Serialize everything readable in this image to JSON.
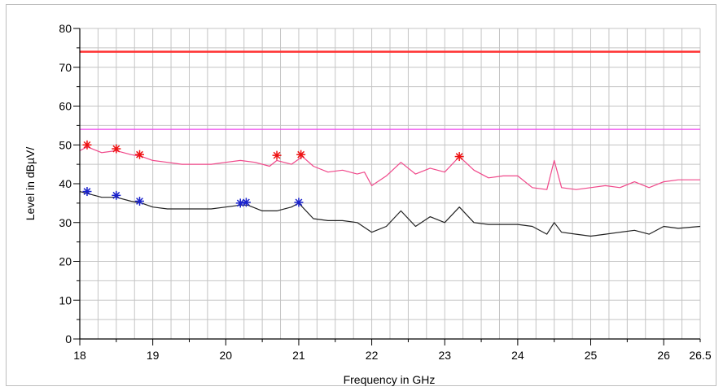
{
  "chart_data": {
    "type": "line",
    "title": "",
    "xlabel": "Frequency in GHz",
    "ylabel": "Level in dBµV/",
    "xlim": [
      18,
      26.5
    ],
    "ylim": [
      0,
      80
    ],
    "x_ticks": [
      18,
      19,
      20,
      21,
      22,
      23,
      24,
      25,
      26,
      26.5
    ],
    "y_ticks": [
      0,
      10,
      20,
      30,
      40,
      50,
      60,
      70,
      80
    ],
    "grid": true,
    "limit_lines": [
      {
        "value": 74,
        "color": "#ff3333"
      },
      {
        "value": 54,
        "color": "#ee44ee"
      }
    ],
    "series": [
      {
        "color": "#f0488a",
        "x": [
          18.0,
          18.1,
          18.3,
          18.5,
          18.7,
          18.85,
          19.0,
          19.2,
          19.4,
          19.6,
          19.8,
          20.0,
          20.2,
          20.4,
          20.6,
          20.7,
          20.9,
          21.05,
          21.2,
          21.4,
          21.6,
          21.8,
          21.9,
          22.0,
          22.2,
          22.4,
          22.6,
          22.8,
          23.0,
          23.2,
          23.4,
          23.6,
          23.8,
          24.0,
          24.2,
          24.4,
          24.5,
          24.6,
          24.8,
          25.0,
          25.2,
          25.4,
          25.6,
          25.8,
          26.0,
          26.2,
          26.5
        ],
        "y": [
          48.5,
          49.5,
          48,
          48.5,
          47.5,
          47,
          46,
          45.5,
          45,
          45,
          45,
          45.5,
          46,
          45.5,
          44.5,
          46,
          45,
          47,
          44.5,
          43,
          43.5,
          42.5,
          43,
          39.5,
          42,
          45.5,
          42.5,
          44,
          43,
          47,
          43.5,
          41.5,
          42,
          42,
          39,
          38.5,
          46,
          39,
          38.5,
          39,
          39.5,
          39,
          40.5,
          39,
          40.5,
          41,
          41
        ]
      },
      {
        "color": "#222222",
        "x": [
          18.0,
          18.1,
          18.3,
          18.5,
          18.7,
          18.85,
          19.0,
          19.2,
          19.4,
          19.6,
          19.8,
          20.0,
          20.2,
          20.3,
          20.5,
          20.7,
          20.9,
          21.0,
          21.2,
          21.4,
          21.6,
          21.8,
          22.0,
          22.2,
          22.4,
          22.6,
          22.8,
          23.0,
          23.2,
          23.4,
          23.6,
          23.8,
          24.0,
          24.2,
          24.4,
          24.5,
          24.6,
          24.8,
          25.0,
          25.2,
          25.4,
          25.6,
          25.8,
          26.0,
          26.2,
          26.5
        ],
        "y": [
          38,
          37.5,
          36.5,
          36.5,
          35.5,
          35,
          34,
          33.5,
          33.5,
          33.5,
          33.5,
          34,
          34.5,
          34.5,
          33,
          33,
          34,
          35,
          31,
          30.5,
          30.5,
          30,
          27.5,
          29,
          33,
          29,
          31.5,
          30,
          34,
          30,
          29.5,
          29.5,
          29.5,
          29,
          27,
          30,
          27.5,
          27,
          26.5,
          27,
          27.5,
          28,
          27,
          29,
          28.5,
          29
        ]
      }
    ],
    "markers": [
      {
        "color": "#ee1111",
        "points": [
          [
            18.1,
            50
          ],
          [
            18.5,
            49
          ],
          [
            18.82,
            47.5
          ],
          [
            20.7,
            47.3
          ],
          [
            21.03,
            47.5
          ],
          [
            23.2,
            47
          ]
        ]
      },
      {
        "color": "#1a22cc",
        "points": [
          [
            18.1,
            38
          ],
          [
            18.5,
            37
          ],
          [
            18.82,
            35.5
          ],
          [
            20.2,
            35
          ],
          [
            20.28,
            35.2
          ],
          [
            21.0,
            35.2
          ]
        ]
      }
    ]
  }
}
